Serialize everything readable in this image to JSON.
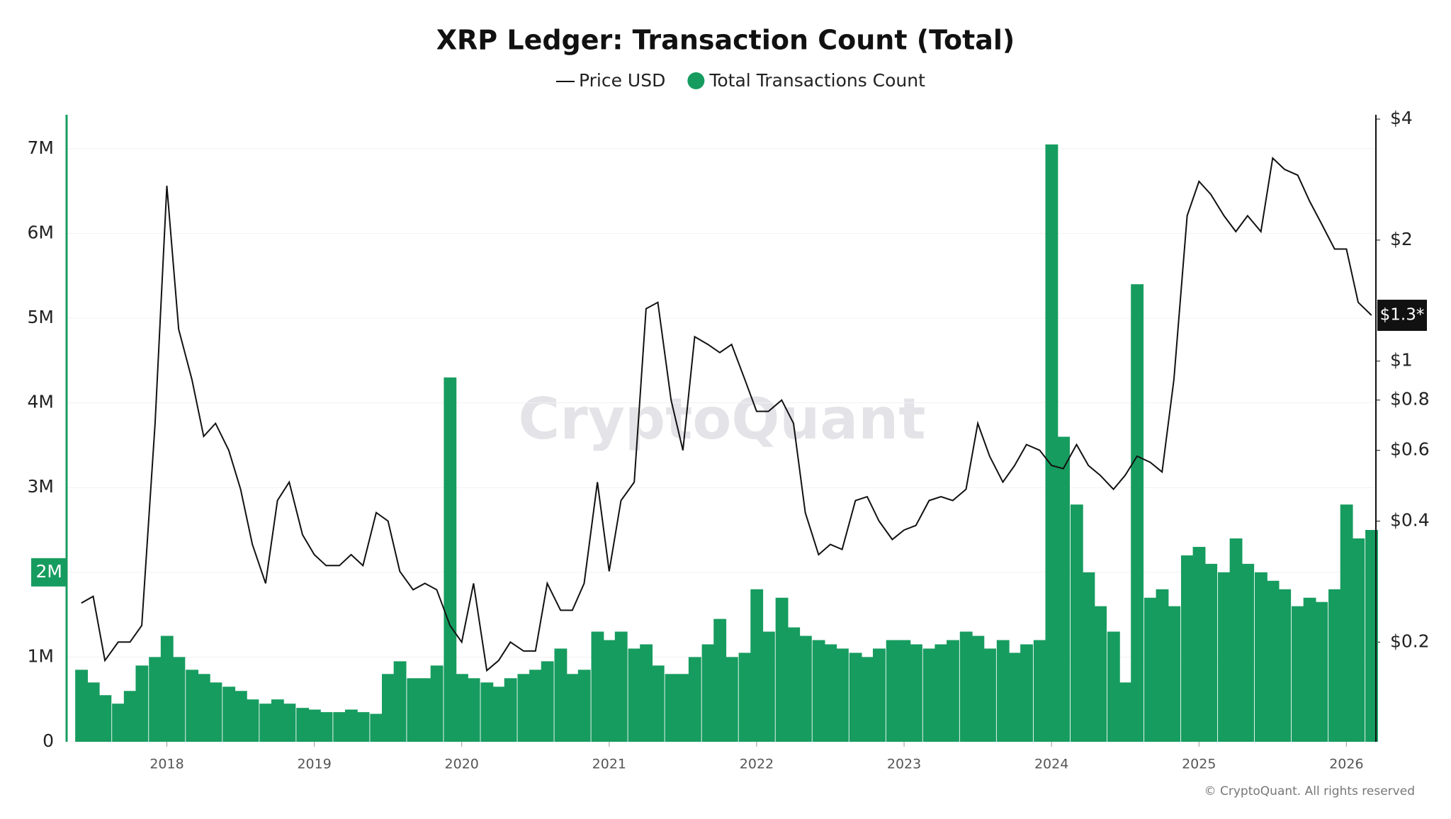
{
  "chart_data": {
    "type": "bar",
    "title": "XRP Ledger: Transaction Count (Total)",
    "watermark": "CryptoQuant",
    "footer": "© CryptoQuant. All rights reserved",
    "x": [
      2017.42,
      2017.5,
      2017.58,
      2017.67,
      2017.75,
      2017.83,
      2017.92,
      2018.0,
      2018.08,
      2018.17,
      2018.25,
      2018.33,
      2018.42,
      2018.5,
      2018.58,
      2018.67,
      2018.75,
      2018.83,
      2018.92,
      2019.0,
      2019.08,
      2019.17,
      2019.25,
      2019.33,
      2019.42,
      2019.5,
      2019.58,
      2019.67,
      2019.75,
      2019.83,
      2019.92,
      2020.0,
      2020.08,
      2020.17,
      2020.25,
      2020.33,
      2020.42,
      2020.5,
      2020.58,
      2020.67,
      2020.75,
      2020.83,
      2020.92,
      2021.0,
      2021.08,
      2021.17,
      2021.25,
      2021.33,
      2021.42,
      2021.5,
      2021.58,
      2021.67,
      2021.75,
      2021.83,
      2021.92,
      2022.0,
      2022.08,
      2022.17,
      2022.25,
      2022.33,
      2022.42,
      2022.5,
      2022.58,
      2022.67,
      2022.75,
      2022.83,
      2022.92,
      2023.0,
      2023.08,
      2023.17,
      2023.25,
      2023.33,
      2023.42,
      2023.5,
      2023.58,
      2023.67,
      2023.75,
      2023.83,
      2023.92,
      2024.0,
      2024.08,
      2024.17,
      2024.25,
      2024.33,
      2024.42,
      2024.5,
      2024.58,
      2024.67,
      2024.75,
      2024.83,
      2024.92,
      2025.0,
      2025.08,
      2025.17,
      2025.25,
      2025.33,
      2025.42,
      2025.5,
      2025.58,
      2025.67,
      2025.75,
      2025.83,
      2025.92,
      2026.0,
      2026.08,
      2026.17
    ],
    "series": [
      {
        "name": "Total Transactions Count",
        "type": "bar",
        "color": "#169c5f",
        "values": [
          850000,
          700000,
          550000,
          450000,
          600000,
          900000,
          1000000,
          1250000,
          1000000,
          850000,
          800000,
          700000,
          650000,
          600000,
          500000,
          450000,
          500000,
          450000,
          400000,
          380000,
          350000,
          350000,
          380000,
          350000,
          330000,
          800000,
          950000,
          750000,
          750000,
          900000,
          4300000,
          800000,
          750000,
          700000,
          650000,
          750000,
          800000,
          850000,
          950000,
          1100000,
          800000,
          850000,
          1300000,
          1200000,
          1300000,
          1100000,
          1150000,
          900000,
          800000,
          800000,
          1000000,
          1150000,
          1450000,
          1000000,
          1050000,
          1800000,
          1300000,
          1700000,
          1350000,
          1250000,
          1200000,
          1150000,
          1100000,
          1050000,
          1000000,
          1100000,
          1200000,
          1200000,
          1150000,
          1100000,
          1150000,
          1200000,
          1300000,
          1250000,
          1100000,
          1200000,
          1050000,
          1150000,
          1200000,
          7050000,
          3600000,
          2800000,
          2000000,
          1600000,
          1300000,
          700000,
          5400000,
          1700000,
          1800000,
          1600000,
          2200000,
          2300000,
          2100000,
          2000000,
          2400000,
          2100000,
          2000000,
          1900000,
          1800000,
          1600000,
          1700000,
          1650000,
          1800000,
          2800000,
          2400000,
          2500000
        ]
      },
      {
        "name": "Price USD",
        "type": "line",
        "axis": "y2",
        "color": "#111111",
        "values": [
          0.25,
          0.26,
          0.18,
          0.2,
          0.2,
          0.22,
          0.7,
          2.73,
          1.2,
          0.9,
          0.65,
          0.7,
          0.6,
          0.48,
          0.35,
          0.28,
          0.45,
          0.5,
          0.37,
          0.33,
          0.31,
          0.31,
          0.33,
          0.31,
          0.42,
          0.4,
          0.3,
          0.27,
          0.28,
          0.27,
          0.22,
          0.2,
          0.28,
          0.17,
          0.18,
          0.2,
          0.19,
          0.19,
          0.28,
          0.24,
          0.24,
          0.28,
          0.5,
          0.3,
          0.45,
          0.5,
          1.35,
          1.4,
          0.8,
          0.6,
          1.15,
          1.1,
          1.05,
          1.1,
          0.9,
          0.75,
          0.75,
          0.8,
          0.7,
          0.42,
          0.33,
          0.35,
          0.34,
          0.45,
          0.46,
          0.4,
          0.36,
          0.38,
          0.39,
          0.45,
          0.46,
          0.45,
          0.48,
          0.7,
          0.58,
          0.5,
          0.55,
          0.62,
          0.6,
          0.55,
          0.54,
          0.62,
          0.55,
          0.52,
          0.48,
          0.52,
          0.58,
          0.56,
          0.53,
          0.9,
          2.3,
          2.8,
          2.6,
          2.3,
          2.1,
          2.3,
          2.1,
          3.2,
          3.0,
          2.9,
          2.5,
          2.2,
          1.9,
          1.9,
          1.4,
          1.3
        ]
      }
    ],
    "xlim": [
      2017.32,
      2026.2
    ],
    "xticks": [
      2018,
      2019,
      2020,
      2021,
      2022,
      2023,
      2024,
      2025,
      2026
    ],
    "ylim": [
      0,
      7400000
    ],
    "yticks": [
      0,
      {
        "value": 1000000,
        "label": "1M"
      },
      {
        "value": 2000000,
        "label": "2M",
        "highlight": true
      },
      {
        "value": 3000000,
        "label": "3M"
      },
      {
        "value": 4000000,
        "label": "4M"
      },
      {
        "value": 5000000,
        "label": "5M"
      },
      {
        "value": 6000000,
        "label": "6M"
      },
      {
        "value": 7000000,
        "label": "7M"
      }
    ],
    "y2lim": [
      0.113,
      4.1
    ],
    "y2scale": "log",
    "y2ticks": [
      {
        "value": 0.2,
        "label": "$0.2"
      },
      {
        "value": 0.4,
        "label": "$0.4"
      },
      {
        "value": 0.6,
        "label": "$0.6"
      },
      {
        "value": 0.8,
        "label": "$0.8"
      },
      {
        "value": 1,
        "label": "$1"
      },
      {
        "value": 2,
        "label": "$2"
      },
      {
        "value": 4,
        "label": "$4"
      }
    ],
    "last_price": {
      "value": 1.3,
      "label": "$1.3*"
    },
    "grid": true
  }
}
